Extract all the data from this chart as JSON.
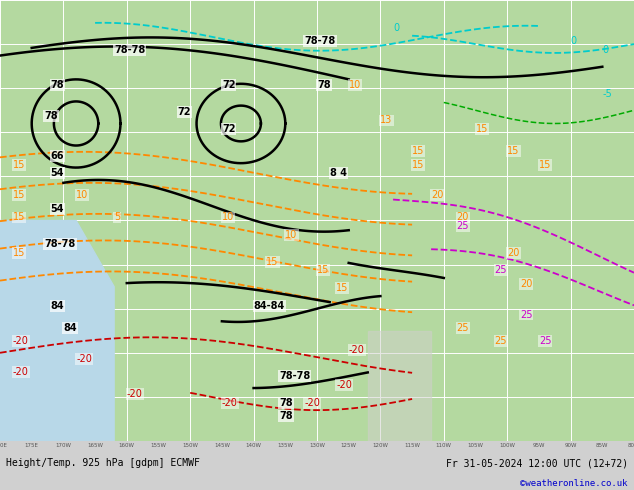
{
  "title_bottom": "Height/Temp. 925 hPa [gdpm] ECMWF",
  "title_right": "Fr 31-05-2024 12:00 UTC (12+72)",
  "copyright": "©weatheronline.co.uk",
  "background_color": "#c8c8c8",
  "map_bg_land": "#b4d9a0",
  "map_bg_sea": "#d0e8f0",
  "grid_color": "#ffffff",
  "border_color": "#808080",
  "contour_black_color": "#000000",
  "contour_orange_color": "#ff8800",
  "contour_red_color": "#cc0000",
  "contour_cyan_color": "#00cccc",
  "contour_magenta_color": "#cc00cc",
  "contour_green_color": "#00aa00",
  "bottom_bar_color": "#d0d0d0",
  "bottom_text_color": "#000000",
  "bottom_bar_height": 0.1,
  "figsize": [
    6.34,
    4.9
  ],
  "dpi": 100
}
